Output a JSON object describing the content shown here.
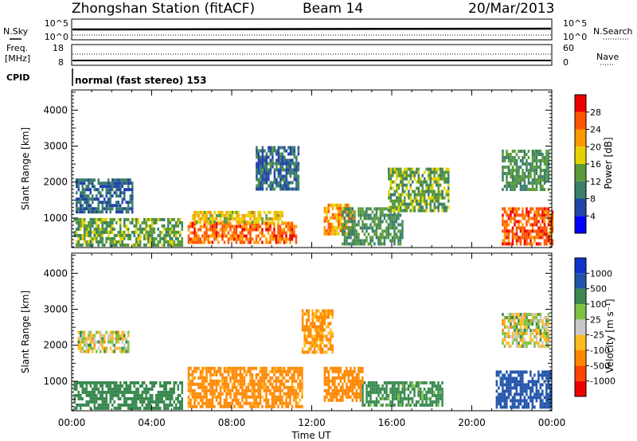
{
  "header": {
    "station": "Zhongshan Station (fitACF)",
    "beam": "Beam 14",
    "date": "20/Mar/2013"
  },
  "noise_panel": {
    "left_label": "N.Sky",
    "right_label": "N.Search",
    "left_ticks": [
      "10^5",
      "10^0"
    ],
    "right_ticks": [
      "10^5",
      "10^0"
    ]
  },
  "freq_panel": {
    "left_label_1": "Freq.",
    "left_label_2": "[MHz]",
    "right_label": "Nave",
    "left_ticks": [
      "18",
      "8"
    ],
    "right_ticks": [
      "60",
      "0"
    ]
  },
  "cpid_panel": {
    "label": "CPID",
    "text": "normal (fast stereo) 153"
  },
  "colors": {
    "power": [
      "#0000ff",
      "#2244aa",
      "#3a7f6a",
      "#5a9a3a",
      "#e6d200",
      "#ff9900",
      "#ff5500",
      "#ee0000"
    ],
    "velocity": [
      "#ee0000",
      "#ff4400",
      "#ff8800",
      "#ffbb22",
      "#c8c8c8",
      "#7dc242",
      "#3a8a50",
      "#2255aa",
      "#1133cc"
    ]
  },
  "chart_data": [
    {
      "type": "heatmap",
      "name": "power",
      "ylabel": "Slant Range [km]",
      "yticks": [
        "1000",
        "2000",
        "3000",
        "4000"
      ],
      "ylim": [
        180,
        4560
      ],
      "xticks": [
        "00:00",
        "04:00",
        "08:00",
        "12:00",
        "16:00",
        "20:00",
        "00:00"
      ],
      "xlim_hours": [
        0,
        24
      ],
      "colorbar_label": "Power [dB]",
      "colorbar_ticks": [
        "4",
        "8",
        "12",
        "16",
        "20",
        "24",
        "28"
      ],
      "colorbar_range": [
        0,
        32
      ],
      "regions": [
        {
          "x": [
            0.1,
            5.5
          ],
          "y": [
            250,
            1000
          ],
          "value": 14
        },
        {
          "x": [
            0.2,
            3.0
          ],
          "y": [
            1200,
            2100
          ],
          "value": 8
        },
        {
          "x": [
            5.8,
            11.2
          ],
          "y": [
            350,
            900
          ],
          "value": 25
        },
        {
          "x": [
            6.0,
            10.5
          ],
          "y": [
            900,
            1200
          ],
          "value": 18
        },
        {
          "x": [
            9.2,
            11.3
          ],
          "y": [
            1800,
            3000
          ],
          "value": 9
        },
        {
          "x": [
            12.6,
            14.0
          ],
          "y": [
            600,
            1400
          ],
          "value": 22
        },
        {
          "x": [
            13.5,
            16.5
          ],
          "y": [
            300,
            1300
          ],
          "value": 12
        },
        {
          "x": [
            15.8,
            18.8
          ],
          "y": [
            1200,
            2400
          ],
          "value": 14
        },
        {
          "x": [
            21.5,
            24.0
          ],
          "y": [
            300,
            1300
          ],
          "value": 26
        },
        {
          "x": [
            21.5,
            23.8
          ],
          "y": [
            1800,
            2900
          ],
          "value": 12
        }
      ]
    },
    {
      "type": "heatmap",
      "name": "velocity",
      "ylabel": "Slant Range [km]",
      "yticks": [
        "1000",
        "2000",
        "3000",
        "4000"
      ],
      "ylim": [
        180,
        4560
      ],
      "xticks": [
        "00:00",
        "04:00",
        "08:00",
        "12:00",
        "16:00",
        "20:00",
        "00:00"
      ],
      "xlim_hours": [
        0,
        24
      ],
      "xlabel": "Time UT",
      "colorbar_label": "Velocity [m s⁻¹]",
      "colorbar_ticks": [
        "-1000",
        "-500",
        "-100",
        "-25",
        "25",
        "100",
        "500",
        "1000"
      ],
      "regions": [
        {
          "x": [
            0.1,
            5.5
          ],
          "y": [
            250,
            1000
          ],
          "value": 300
        },
        {
          "x": [
            0.3,
            2.8
          ],
          "y": [
            1800,
            2400
          ],
          "value": 0
        },
        {
          "x": [
            5.8,
            11.5
          ],
          "y": [
            300,
            1400
          ],
          "value": -200
        },
        {
          "x": [
            11.5,
            13.0
          ],
          "y": [
            1800,
            3000
          ],
          "value": -150
        },
        {
          "x": [
            12.6,
            14.5
          ],
          "y": [
            500,
            1400
          ],
          "value": -300
        },
        {
          "x": [
            14.5,
            18.5
          ],
          "y": [
            300,
            1000
          ],
          "value": 200
        },
        {
          "x": [
            21.2,
            23.9
          ],
          "y": [
            300,
            1300
          ],
          "value": 800
        },
        {
          "x": [
            21.5,
            23.8
          ],
          "y": [
            2000,
            2900
          ],
          "value": 10
        }
      ]
    }
  ]
}
